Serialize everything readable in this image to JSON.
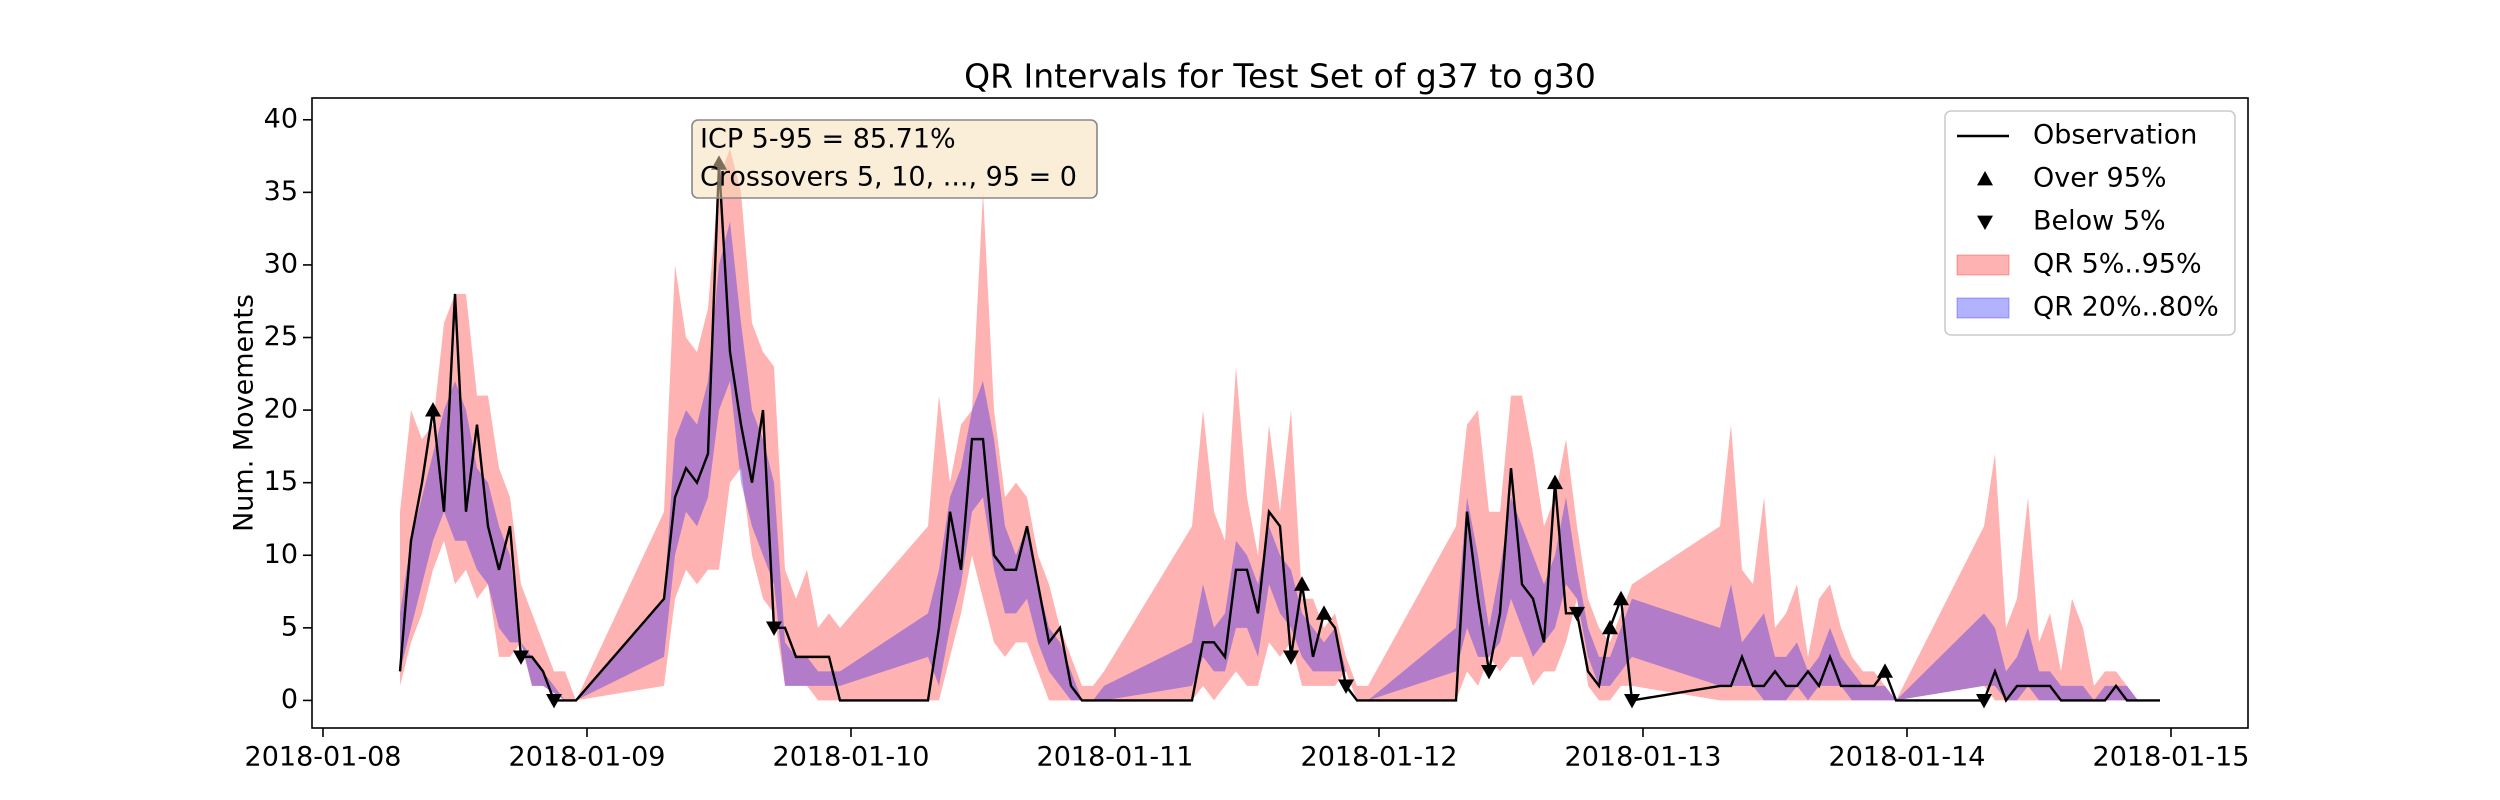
{
  "chart_data": {
    "type": "line",
    "title": "QR Intervals for Test Set of g37 to g30",
    "ylabel": "Num. Movements",
    "x": [
      "2018-01-08T07:00",
      "2018-01-08T08:00",
      "2018-01-08T09:00",
      "2018-01-08T10:00",
      "2018-01-08T11:00",
      "2018-01-08T12:00",
      "2018-01-08T13:00",
      "2018-01-08T14:00",
      "2018-01-08T15:00",
      "2018-01-08T16:00",
      "2018-01-08T17:00",
      "2018-01-08T18:00",
      "2018-01-08T19:00",
      "2018-01-08T20:00",
      "2018-01-08T21:00",
      "2018-01-08T22:00",
      "2018-01-08T23:00",
      "2018-01-09T07:00",
      "2018-01-09T08:00",
      "2018-01-09T09:00",
      "2018-01-09T10:00",
      "2018-01-09T11:00",
      "2018-01-09T12:00",
      "2018-01-09T13:00",
      "2018-01-09T14:00",
      "2018-01-09T15:00",
      "2018-01-09T16:00",
      "2018-01-09T17:00",
      "2018-01-09T18:00",
      "2018-01-09T19:00",
      "2018-01-09T20:00",
      "2018-01-09T21:00",
      "2018-01-09T22:00",
      "2018-01-09T23:00",
      "2018-01-10T07:00",
      "2018-01-10T08:00",
      "2018-01-10T09:00",
      "2018-01-10T10:00",
      "2018-01-10T11:00",
      "2018-01-10T12:00",
      "2018-01-10T13:00",
      "2018-01-10T14:00",
      "2018-01-10T15:00",
      "2018-01-10T16:00",
      "2018-01-10T17:00",
      "2018-01-10T18:00",
      "2018-01-10T19:00",
      "2018-01-10T20:00",
      "2018-01-10T21:00",
      "2018-01-10T22:00",
      "2018-01-10T23:00",
      "2018-01-11T07:00",
      "2018-01-11T08:00",
      "2018-01-11T09:00",
      "2018-01-11T10:00",
      "2018-01-11T11:00",
      "2018-01-11T12:00",
      "2018-01-11T13:00",
      "2018-01-11T14:00",
      "2018-01-11T15:00",
      "2018-01-11T16:00",
      "2018-01-11T17:00",
      "2018-01-11T18:00",
      "2018-01-11T19:00",
      "2018-01-11T20:00",
      "2018-01-11T21:00",
      "2018-01-11T22:00",
      "2018-01-11T23:00",
      "2018-01-12T07:00",
      "2018-01-12T08:00",
      "2018-01-12T09:00",
      "2018-01-12T10:00",
      "2018-01-12T11:00",
      "2018-01-12T12:00",
      "2018-01-12T13:00",
      "2018-01-12T14:00",
      "2018-01-12T15:00",
      "2018-01-12T16:00",
      "2018-01-12T17:00",
      "2018-01-12T18:00",
      "2018-01-12T19:00",
      "2018-01-12T20:00",
      "2018-01-12T21:00",
      "2018-01-12T22:00",
      "2018-01-12T23:00",
      "2018-01-13T07:00",
      "2018-01-13T08:00",
      "2018-01-13T09:00",
      "2018-01-13T10:00",
      "2018-01-13T11:00",
      "2018-01-13T12:00",
      "2018-01-13T13:00",
      "2018-01-13T14:00",
      "2018-01-13T15:00",
      "2018-01-13T16:00",
      "2018-01-13T17:00",
      "2018-01-13T18:00",
      "2018-01-13T19:00",
      "2018-01-13T20:00",
      "2018-01-13T21:00",
      "2018-01-13T22:00",
      "2018-01-13T23:00",
      "2018-01-14T07:00",
      "2018-01-14T08:00",
      "2018-01-14T09:00",
      "2018-01-14T10:00",
      "2018-01-14T11:00",
      "2018-01-14T12:00",
      "2018-01-14T13:00",
      "2018-01-14T14:00",
      "2018-01-14T15:00",
      "2018-01-14T16:00",
      "2018-01-14T17:00",
      "2018-01-14T18:00",
      "2018-01-14T19:00",
      "2018-01-14T20:00",
      "2018-01-14T21:00",
      "2018-01-14T22:00",
      "2018-01-14T23:00"
    ],
    "series": [
      {
        "name": "Observation",
        "color": "#000000",
        "values": [
          2,
          11,
          15,
          20,
          13,
          28,
          13,
          19,
          12,
          9,
          12,
          3,
          3,
          2,
          0,
          0,
          0,
          7,
          14,
          16,
          15,
          17,
          37,
          24,
          19,
          15,
          20,
          5,
          5,
          3,
          3,
          3,
          3,
          0,
          0,
          5,
          13,
          9,
          18,
          18,
          10,
          9,
          9,
          12,
          8,
          4,
          5,
          1,
          0,
          0,
          0,
          0,
          4,
          4,
          3,
          9,
          9,
          6,
          13,
          12,
          3,
          8,
          3,
          6,
          5,
          1,
          0,
          0,
          0,
          13,
          7,
          2,
          6,
          16,
          8,
          7,
          4,
          15,
          6,
          6,
          2,
          1,
          5,
          7,
          0,
          1,
          1,
          3,
          1,
          1,
          2,
          1,
          1,
          2,
          1,
          3,
          1,
          1,
          1,
          1,
          2,
          0,
          0,
          2,
          0,
          1,
          1,
          1,
          1,
          0,
          0,
          0,
          0,
          0,
          1,
          0,
          0,
          0,
          0
        ]
      },
      {
        "name": "Over 95%",
        "color": "#000000",
        "marker": "up",
        "x": [
          "2018-01-08T10:00",
          "2018-01-09T12:00",
          "2018-01-11T17:00",
          "2018-01-11T19:00",
          "2018-01-12T16:00",
          "2018-01-12T21:00",
          "2018-01-12T22:00",
          "2018-01-13T22:00"
        ],
        "values": [
          20,
          37,
          8,
          6,
          15,
          5,
          7,
          2
        ]
      },
      {
        "name": "Below 5%",
        "color": "#000000",
        "marker": "down",
        "x": [
          "2018-01-08T18:00",
          "2018-01-08T21:00",
          "2018-01-09T17:00",
          "2018-01-11T16:00",
          "2018-01-11T21:00",
          "2018-01-12T10:00",
          "2018-01-12T18:00",
          "2018-01-12T23:00",
          "2018-01-14T07:00"
        ],
        "values": [
          3,
          0,
          5,
          3,
          1,
          2,
          6,
          0,
          0
        ]
      }
    ],
    "bands": [
      {
        "name": "QR 5%..95%",
        "color": "#ff0000",
        "lower": [
          1,
          4,
          6,
          9,
          11,
          8,
          9,
          7,
          8,
          3,
          3,
          4,
          1,
          1,
          0.5,
          0,
          0,
          1,
          7,
          9,
          8,
          9,
          9,
          15,
          16,
          10,
          7,
          6,
          1,
          1,
          1,
          0,
          0,
          0,
          0,
          0,
          3,
          6,
          10,
          7,
          4,
          3,
          4,
          4,
          2,
          0,
          0,
          0,
          0,
          0,
          0,
          0,
          1,
          0,
          1,
          2,
          1,
          1,
          4,
          3,
          4,
          1,
          1,
          1,
          1,
          2,
          0,
          0,
          0,
          2,
          1,
          3,
          2,
          3,
          3,
          1,
          2,
          2,
          4,
          7,
          1,
          0,
          0,
          1,
          1,
          0,
          0,
          0,
          0,
          0,
          0,
          0,
          0,
          0,
          0,
          0,
          0,
          0,
          0,
          0,
          0,
          0,
          1,
          0,
          0,
          0,
          0,
          0,
          0,
          0,
          0,
          0,
          0,
          0,
          0,
          0,
          0,
          0,
          0
        ],
        "upper": [
          13,
          20,
          18,
          19,
          26,
          28,
          28,
          21,
          21,
          16,
          14,
          8,
          6,
          4,
          2,
          2,
          0,
          13,
          30,
          25,
          24,
          27,
          36,
          38,
          35,
          26,
          24,
          23,
          9,
          7,
          9,
          5,
          6,
          5,
          12,
          21,
          15,
          19,
          20,
          35,
          20,
          14,
          15,
          14,
          10,
          8,
          5,
          3,
          1,
          1,
          2,
          12,
          20,
          13,
          11,
          23,
          14,
          10,
          19,
          13,
          20,
          7,
          7,
          5,
          6,
          3,
          1,
          1,
          12,
          19,
          20,
          13,
          13,
          21,
          21,
          17,
          12,
          14,
          18,
          12,
          7,
          5,
          4,
          6,
          8,
          12,
          19,
          9,
          8,
          14,
          5,
          6,
          8,
          3,
          7,
          8,
          5,
          3,
          2,
          2,
          1,
          0,
          12,
          17,
          5,
          7,
          14,
          4,
          6,
          2,
          7,
          5,
          1,
          2,
          2,
          1,
          0,
          0,
          0
        ]
      },
      {
        "name": "QR 20%..80%",
        "color": "#0000ff",
        "lower": [
          2,
          5,
          8,
          11,
          13,
          11,
          11,
          9,
          8,
          5,
          4,
          4,
          1,
          1,
          0.5,
          0,
          0,
          3,
          10,
          13,
          12,
          14,
          20,
          22,
          15,
          12,
          10,
          8,
          1,
          1,
          1,
          1,
          1,
          1,
          3,
          1,
          5,
          8,
          13,
          14,
          9,
          6,
          6,
          7,
          4,
          2,
          1,
          0,
          0,
          0,
          0,
          1,
          3,
          2,
          2,
          5,
          5,
          3,
          8,
          6,
          5,
          3,
          2,
          2,
          2,
          2,
          0,
          0,
          2,
          5,
          3,
          3,
          4,
          7,
          5,
          3,
          4,
          5,
          8,
          7,
          3,
          1,
          1,
          2,
          3,
          1,
          1,
          1,
          1,
          0,
          0,
          0,
          1,
          0,
          1,
          1,
          1,
          0,
          0,
          0,
          0,
          0,
          1,
          1,
          0,
          0,
          1,
          0,
          0,
          0,
          0,
          0,
          0,
          0,
          0,
          0,
          0,
          0,
          0
        ],
        "upper": [
          6,
          11,
          14,
          17,
          20,
          22,
          20,
          16,
          15,
          12,
          10,
          4,
          3,
          2,
          1,
          0,
          0,
          7,
          18,
          20,
          19,
          22,
          30,
          33,
          26,
          20,
          18,
          15,
          4,
          3,
          3,
          2,
          2,
          2,
          6,
          9,
          14,
          16,
          20,
          22,
          18,
          12,
          10,
          12,
          8,
          5,
          4,
          2,
          0,
          0,
          1,
          4,
          8,
          5,
          6,
          11,
          10,
          8,
          12,
          10,
          9,
          6,
          5,
          4,
          5,
          2,
          0,
          0,
          5,
          14,
          10,
          5,
          9,
          14,
          12,
          10,
          8,
          10,
          14,
          9,
          5,
          3,
          3,
          5,
          7,
          5,
          8,
          4,
          5,
          6,
          3,
          3,
          4,
          2,
          3,
          5,
          3,
          2,
          1,
          1,
          1,
          0,
          6,
          5,
          2,
          3,
          5,
          2,
          2,
          1,
          1,
          1,
          0,
          1,
          1,
          1,
          0,
          0,
          0
        ]
      }
    ],
    "annotations": [
      {
        "lines": [
          "ICP 5-95 = 85.71%",
          "Crossovers 5, 10, ..., 95 = 0"
        ]
      }
    ],
    "xlim": [
      "2018-01-07T23:00",
      "2018-01-15T07:00"
    ],
    "xticks": [
      {
        "value": "2018-01-08T00:00",
        "label": "2018-01-08"
      },
      {
        "value": "2018-01-09T00:00",
        "label": "2018-01-09"
      },
      {
        "value": "2018-01-10T00:00",
        "label": "2018-01-10"
      },
      {
        "value": "2018-01-11T00:00",
        "label": "2018-01-11"
      },
      {
        "value": "2018-01-12T00:00",
        "label": "2018-01-12"
      },
      {
        "value": "2018-01-13T00:00",
        "label": "2018-01-13"
      },
      {
        "value": "2018-01-14T00:00",
        "label": "2018-01-14"
      },
      {
        "value": "2018-01-15T00:00",
        "label": "2018-01-15"
      }
    ],
    "ylim": [
      -1.9,
      41.5
    ],
    "yticks": [
      0,
      5,
      10,
      15,
      20,
      25,
      30,
      35,
      40
    ],
    "legend": "upper right"
  }
}
